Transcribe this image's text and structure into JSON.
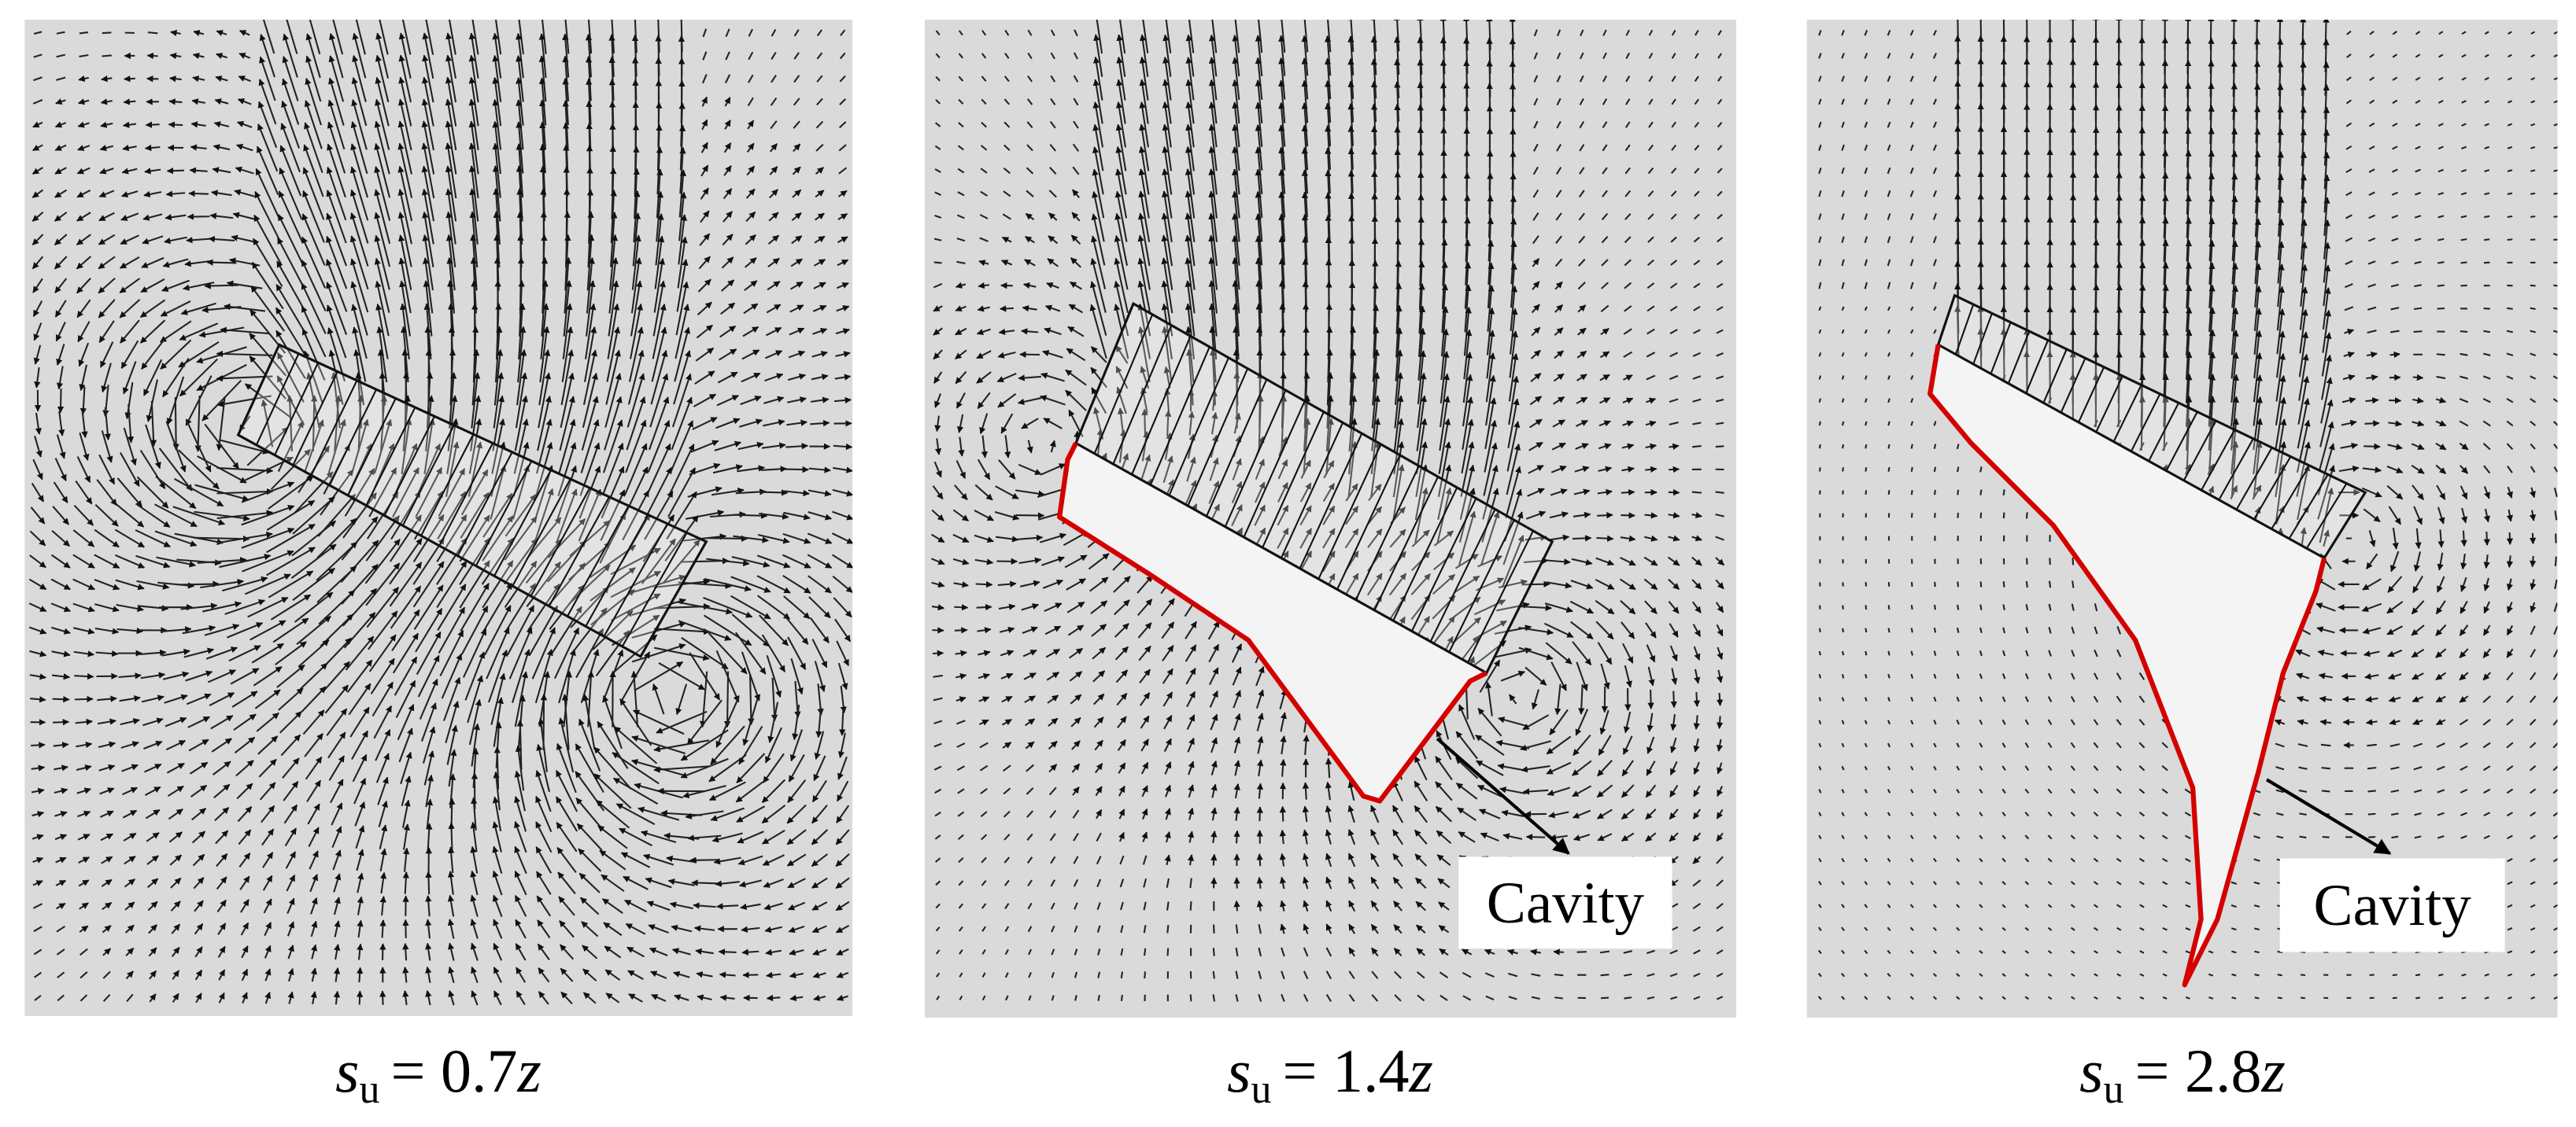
{
  "panels": [
    {
      "caption": {
        "symbol": "s",
        "subscript": "u",
        "equals": "= 0.7",
        "variable": "z"
      }
    },
    {
      "caption": {
        "symbol": "s",
        "subscript": "u",
        "equals": "= 1.4",
        "variable": "z"
      },
      "annotation": "Cavity"
    },
    {
      "caption": {
        "symbol": "s",
        "subscript": "u",
        "equals": "= 2.8",
        "variable": "z"
      },
      "annotation": "Cavity"
    }
  ]
}
